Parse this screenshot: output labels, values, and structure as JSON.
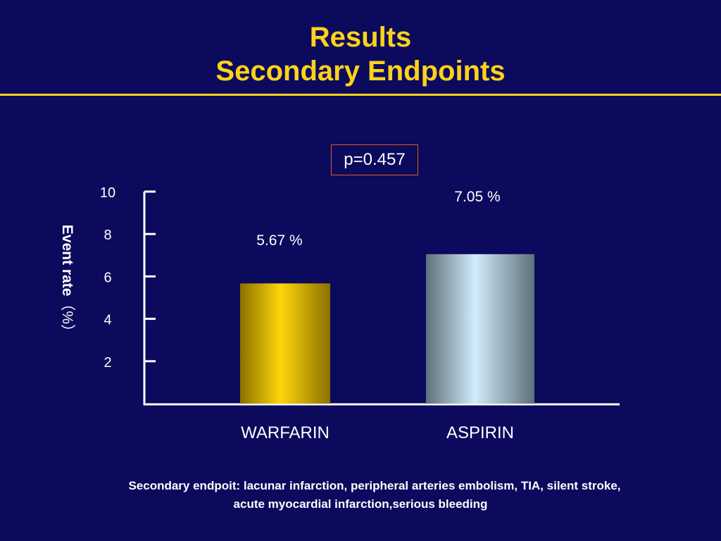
{
  "slide": {
    "title_line_1": "Results",
    "title_line_2": "Secondary Endpoints",
    "title_color": "#ffd21a",
    "background_color": "#0c0a5c",
    "p_value": "p=0.457",
    "ylabel_main": "Event rate",
    "ylabel_unit": "（%）",
    "footnote_line_1": "Secondary endpoit:  lacunar infarction, peripheral arteries embolism, TIA, silent stroke,",
    "footnote_line_2": "acute myocardial infarction,serious bleeding"
  },
  "chart_data": {
    "type": "bar",
    "categories": [
      "WARFARIN",
      "ASPIRIN"
    ],
    "values": [
      5.67,
      7.05
    ],
    "data_labels": [
      "5.67 %",
      "7.05 %"
    ],
    "bar_colors": [
      "#d4b000",
      "#b8dcf2"
    ],
    "yticks": [
      2,
      4,
      6,
      8,
      10
    ],
    "ylim": [
      0,
      10
    ],
    "ylabel": "Event rate（%）",
    "grid": false,
    "legend": "none"
  }
}
